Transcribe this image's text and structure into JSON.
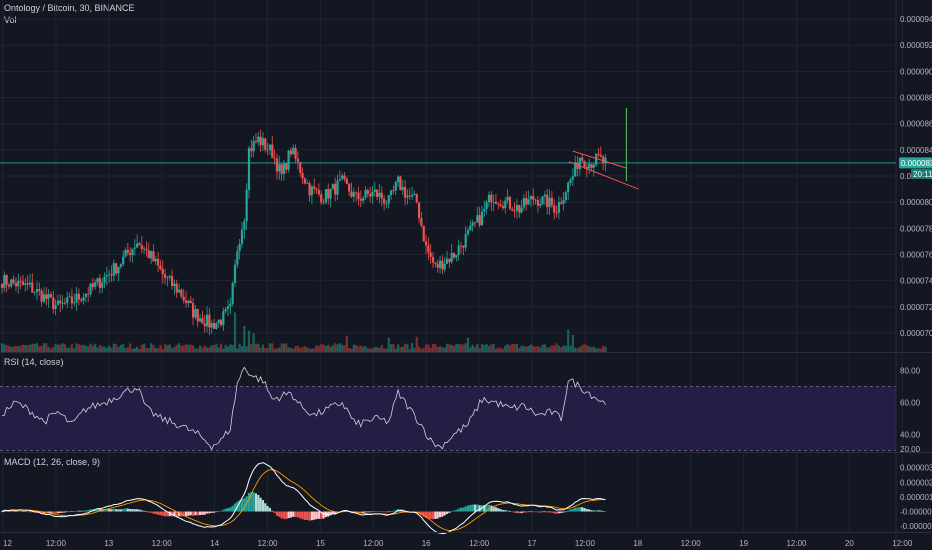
{
  "header": {
    "symbol": "Ontology / Bitcoin",
    "interval": "30",
    "exchange": "BINANCE",
    "title": "Ontology / Bitcoin, 30, BINANCE",
    "vol_label": "Vol"
  },
  "indicators": {
    "rsi_label": "RSI (14, close)",
    "macd_label": "MACD (12, 26, close, 9)"
  },
  "colors": {
    "background": "#131722",
    "grid": "#1f2433",
    "up": "#26a69a",
    "down": "#ef5350",
    "rsi_band": "#2a1f4a",
    "rsi_line": "#d1d4dc",
    "macd_line": "#ffffff",
    "signal_line": "#ff9800",
    "current_price": "#26a69a",
    "channel": "#ef5350",
    "projection": "#4caf50"
  },
  "current_price": {
    "value": "0.0000830",
    "countdown": "20:11"
  },
  "chart_data": [
    {
      "type": "candlestick",
      "title": "Ontology / Bitcoin, 30, BINANCE",
      "ylim": [
        6.9e-05,
        9.5e-05
      ],
      "y_ticks": [
        "0.0000940",
        "0.0000920",
        "0.0000900",
        "0.0000880",
        "0.0000860",
        "0.0000840",
        "0.0000820",
        "0.0000800",
        "0.0000780",
        "0.0000760",
        "0.0000740",
        "0.0000720",
        "0.0000700"
      ],
      "x_ticks": [
        "12",
        "12:00",
        "13",
        "12:00",
        "14",
        "12:00",
        "15",
        "12:00",
        "16",
        "12:00",
        "17",
        "12:00",
        "18",
        "12:00",
        "19",
        "12:00",
        "20",
        "12:00"
      ],
      "anchors_close": [
        [
          0,
          74.0
        ],
        [
          12,
          73.5
        ],
        [
          20,
          72.5
        ],
        [
          24,
          72.0
        ],
        [
          30,
          72.4
        ],
        [
          38,
          73.3
        ],
        [
          50,
          75.2
        ],
        [
          58,
          77.0
        ],
        [
          64,
          75.8
        ],
        [
          70,
          74.2
        ],
        [
          76,
          73.2
        ],
        [
          82,
          71.6
        ],
        [
          90,
          70.6
        ],
        [
          94,
          71.0
        ],
        [
          98,
          71.8
        ],
        [
          101,
          76.5
        ],
        [
          104,
          79.0
        ],
        [
          106,
          84.0
        ],
        [
          110,
          84.8
        ],
        [
          116,
          83.8
        ],
        [
          120,
          82.0
        ],
        [
          124,
          84.0
        ],
        [
          128,
          82.5
        ],
        [
          132,
          81.0
        ],
        [
          138,
          80.4
        ],
        [
          146,
          81.5
        ],
        [
          152,
          80.3
        ],
        [
          160,
          80.7
        ],
        [
          166,
          80.0
        ],
        [
          170,
          81.5
        ],
        [
          174,
          80.5
        ],
        [
          178,
          80.0
        ],
        [
          182,
          76.5
        ],
        [
          186,
          75.0
        ],
        [
          194,
          76.0
        ],
        [
          200,
          77.5
        ],
        [
          206,
          79.0
        ],
        [
          210,
          80.5
        ],
        [
          216,
          80.0
        ],
        [
          222,
          79.5
        ],
        [
          228,
          80.3
        ],
        [
          234,
          80.0
        ],
        [
          238,
          79.5
        ],
        [
          242,
          81.0
        ],
        [
          245,
          82.0
        ],
        [
          248,
          83.5
        ],
        [
          252,
          83.0
        ],
        [
          256,
          83.3
        ],
        [
          259,
          83.0
        ]
      ],
      "volume_spikes": [
        [
          100,
          3.5
        ],
        [
          104,
          2.0
        ],
        [
          106,
          1.5
        ],
        [
          108,
          1.2
        ],
        [
          148,
          0.9
        ],
        [
          166,
          0.7
        ],
        [
          178,
          0.8
        ],
        [
          200,
          0.7
        ],
        [
          243,
          1.6
        ],
        [
          245,
          1.0
        ]
      ]
    },
    {
      "type": "line",
      "title": "RSI (14, close)",
      "ylim": [
        29,
        91
      ],
      "y_ticks": [
        "80.00",
        "60.00",
        "40.00",
        "20.00"
      ],
      "bands": [
        30,
        70
      ],
      "anchors": [
        [
          0,
          53
        ],
        [
          6,
          60
        ],
        [
          12,
          55
        ],
        [
          18,
          48
        ],
        [
          24,
          54
        ],
        [
          30,
          46
        ],
        [
          36,
          56
        ],
        [
          44,
          60
        ],
        [
          52,
          66
        ],
        [
          58,
          70
        ],
        [
          62,
          56
        ],
        [
          68,
          50
        ],
        [
          76,
          46
        ],
        [
          84,
          40
        ],
        [
          90,
          33
        ],
        [
          94,
          36
        ],
        [
          98,
          44
        ],
        [
          101,
          72
        ],
        [
          104,
          82
        ],
        [
          108,
          76
        ],
        [
          112,
          74
        ],
        [
          116,
          62
        ],
        [
          120,
          64
        ],
        [
          124,
          66
        ],
        [
          128,
          58
        ],
        [
          134,
          52
        ],
        [
          140,
          56
        ],
        [
          146,
          60
        ],
        [
          152,
          46
        ],
        [
          160,
          50
        ],
        [
          166,
          48
        ],
        [
          170,
          66
        ],
        [
          174,
          58
        ],
        [
          180,
          46
        ],
        [
          184,
          36
        ],
        [
          188,
          32
        ],
        [
          194,
          40
        ],
        [
          200,
          46
        ],
        [
          206,
          62
        ],
        [
          212,
          60
        ],
        [
          218,
          56
        ],
        [
          224,
          58
        ],
        [
          230,
          52
        ],
        [
          236,
          54
        ],
        [
          240,
          50
        ],
        [
          243,
          74
        ],
        [
          246,
          72
        ],
        [
          250,
          68
        ],
        [
          254,
          64
        ],
        [
          258,
          60
        ]
      ]
    },
    {
      "type": "line",
      "title": "MACD (12, 26, close, 9)",
      "ylim": [
        -1.4e-06,
        4e-06
      ],
      "y_ticks": [
        "0.0000030",
        "0.0000020",
        "0.0000010",
        "-0.0000000",
        "-0.0000010"
      ]
    }
  ]
}
